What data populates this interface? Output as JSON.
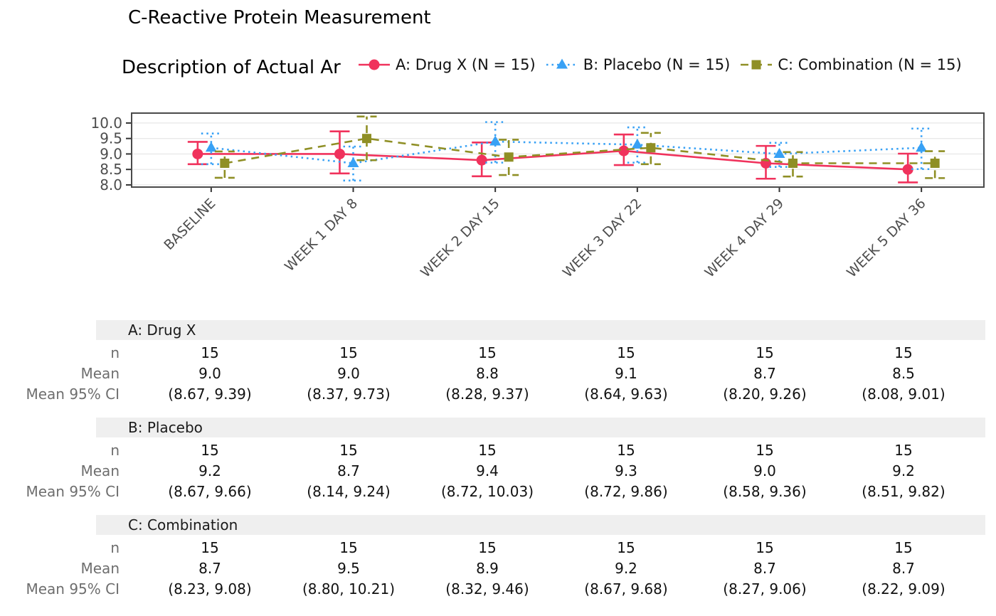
{
  "title": "C-Reactive Protein Measurement",
  "subtitle": "Description of Actual Ar",
  "legend": {
    "position": "top",
    "items": [
      {
        "label": "A: Drug X (N = 15)",
        "color": "#F0325C",
        "marker": "circle",
        "line": "solid"
      },
      {
        "label": "B: Placebo (N = 15)",
        "color": "#38A1F5",
        "marker": "triangle",
        "line": "dotted"
      },
      {
        "label": "C: Combination (N = 15)",
        "color": "#8F8F25",
        "marker": "square",
        "line": "dashed"
      }
    ]
  },
  "chart_data": {
    "type": "line",
    "x_categories": [
      "BASELINE",
      "WEEK 1 DAY 8",
      "WEEK 2 DAY 15",
      "WEEK 3 DAY 22",
      "WEEK 4 DAY 29",
      "WEEK 5 DAY 36"
    ],
    "yticks": [
      8.0,
      8.5,
      9.0,
      9.5,
      10.0
    ],
    "ylim": [
      7.93,
      10.32
    ],
    "grid": true,
    "legend_position": "top",
    "series": [
      {
        "name": "A: Drug X",
        "color": "#F0325C",
        "marker": "circle",
        "line": "solid",
        "means": [
          9.0,
          9.0,
          8.8,
          9.1,
          8.7,
          8.5
        ],
        "ci_low": [
          8.67,
          8.37,
          8.28,
          8.64,
          8.2,
          8.08
        ],
        "ci_high": [
          9.39,
          9.73,
          9.37,
          9.63,
          9.26,
          9.01
        ]
      },
      {
        "name": "B: Placebo",
        "color": "#38A1F5",
        "marker": "triangle",
        "line": "dotted",
        "means": [
          9.2,
          8.7,
          9.4,
          9.3,
          9.0,
          9.2
        ],
        "ci_low": [
          8.67,
          8.14,
          8.72,
          8.72,
          8.58,
          8.51
        ],
        "ci_high": [
          9.66,
          9.24,
          10.03,
          9.86,
          9.36,
          9.82
        ]
      },
      {
        "name": "C: Combination",
        "color": "#8F8F25",
        "marker": "square",
        "line": "dashed",
        "means": [
          8.7,
          9.5,
          8.9,
          9.2,
          8.7,
          8.7
        ],
        "ci_low": [
          8.23,
          8.8,
          8.32,
          8.67,
          8.27,
          8.22
        ],
        "ci_high": [
          9.08,
          10.21,
          9.46,
          9.68,
          9.06,
          9.09
        ]
      }
    ]
  },
  "table": {
    "row_labels": [
      "n",
      "Mean",
      "Mean 95% CI"
    ],
    "sections": [
      {
        "header": "A: Drug X",
        "n": [
          "15",
          "15",
          "15",
          "15",
          "15",
          "15"
        ],
        "mean": [
          "9.0",
          "9.0",
          "8.8",
          "9.1",
          "8.7",
          "8.5"
        ],
        "ci": [
          "(8.67, 9.39)",
          "(8.37, 9.73)",
          "(8.28, 9.37)",
          "(8.64, 9.63)",
          "(8.20, 9.26)",
          "(8.08, 9.01)"
        ]
      },
      {
        "header": "B: Placebo",
        "n": [
          "15",
          "15",
          "15",
          "15",
          "15",
          "15"
        ],
        "mean": [
          "9.2",
          "8.7",
          "9.4",
          "9.3",
          "9.0",
          "9.2"
        ],
        "ci": [
          "(8.67, 9.66)",
          "(8.14, 9.24)",
          "(8.72, 10.03)",
          "(8.72, 9.86)",
          "(8.58, 9.36)",
          "(8.51, 9.82)"
        ]
      },
      {
        "header": "C: Combination",
        "n": [
          "15",
          "15",
          "15",
          "15",
          "15",
          "15"
        ],
        "mean": [
          "8.7",
          "9.5",
          "8.9",
          "9.2",
          "8.7",
          "8.7"
        ],
        "ci": [
          "(8.23, 9.08)",
          "(8.80, 10.21)",
          "(8.32, 9.46)",
          "(8.67, 9.68)",
          "(8.27, 9.06)",
          "(8.22, 9.09)"
        ]
      }
    ]
  }
}
